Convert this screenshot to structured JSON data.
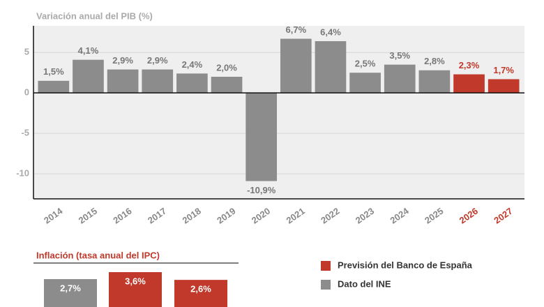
{
  "chart_data": [
    {
      "type": "bar",
      "title": "Variación anual del PIB (%)",
      "categories": [
        "2014",
        "2015",
        "2016",
        "2017",
        "2018",
        "2019",
        "2020",
        "2021",
        "2022",
        "2023",
        "2024",
        "2025",
        "2026",
        "2027"
      ],
      "series": [
        {
          "name": "Dato del INE",
          "color": "#8c8c8c",
          "values": [
            1.5,
            4.1,
            2.9,
            2.9,
            2.4,
            2.0,
            -10.9,
            6.7,
            6.4,
            2.5,
            3.5,
            2.8,
            null,
            null
          ],
          "value_labels": [
            "1,5%",
            "4,1%",
            "2,9%",
            "2,9%",
            "2,4%",
            "2,0%",
            "-10,9%",
            "6,7%",
            "6,4%",
            "2,5%",
            "3,5%",
            "2,8%",
            null,
            null
          ]
        },
        {
          "name": "Previsión del Banco de España",
          "color": "#c0392b",
          "values": [
            null,
            null,
            null,
            null,
            null,
            null,
            null,
            null,
            null,
            null,
            null,
            null,
            2.3,
            1.7
          ],
          "value_labels": [
            null,
            null,
            null,
            null,
            null,
            null,
            null,
            null,
            null,
            null,
            null,
            null,
            "2,3%",
            "1,7%"
          ]
        }
      ],
      "ylim": [
        -13.1,
        8.3
      ],
      "yticks": [
        -10,
        -5,
        0,
        5
      ],
      "grid": true
    },
    {
      "type": "bar",
      "title": "Inflación (tasa anual del IPC)",
      "categories": [
        null,
        null,
        null
      ],
      "values": [
        2.7,
        3.6,
        2.6
      ],
      "value_labels": [
        "2,7%",
        "3,6%",
        "2,6%"
      ],
      "colors": [
        "#8c8c8c",
        "#c0392b",
        "#c0392b"
      ]
    }
  ]
}
